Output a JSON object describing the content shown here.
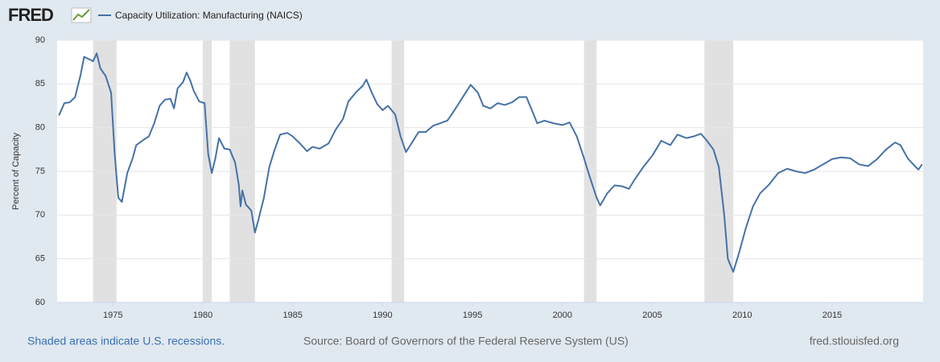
{
  "logo": "FRED",
  "footer": {
    "note": "Shaded areas indicate U.S. recessions.",
    "source": "Source: Board of Governors of the Federal Reserve System (US)",
    "site": "fred.stlouisfed.org"
  },
  "chart_data": {
    "type": "line",
    "ylabel": "Percent of Capacity",
    "xlim": [
      1971.9,
      2020.06
    ],
    "xticks": [
      1975,
      1980,
      1985,
      1990,
      1995,
      2000,
      2005,
      2010,
      2015
    ],
    "ylim": [
      60,
      90
    ],
    "yticks": [
      60,
      65,
      70,
      75,
      80,
      85,
      90
    ],
    "grid": true,
    "recessions": [
      [
        1973.9,
        1975.2
      ],
      [
        1980.0,
        1980.5
      ],
      [
        1981.5,
        1982.9
      ],
      [
        1990.5,
        1991.2
      ],
      [
        2001.2,
        2001.9
      ],
      [
        2007.9,
        2009.5
      ]
    ],
    "recession_color": "#e1e1e1",
    "x": [
      1972.0,
      1972.3,
      1972.6,
      1972.9,
      1973.2,
      1973.4,
      1973.7,
      1973.9,
      1974.1,
      1974.3,
      1974.6,
      1974.9,
      1975.1,
      1975.3,
      1975.5,
      1975.8,
      1976.1,
      1976.3,
      1976.7,
      1977.0,
      1977.3,
      1977.6,
      1977.9,
      1978.2,
      1978.4,
      1978.6,
      1978.9,
      1979.1,
      1979.3,
      1979.5,
      1979.8,
      1980.1,
      1980.3,
      1980.5,
      1980.7,
      1980.9,
      1981.2,
      1981.5,
      1981.8,
      1982.0,
      1982.1,
      1982.2,
      1982.4,
      1982.7,
      1982.9,
      1983.1,
      1983.4,
      1983.7,
      1984.0,
      1984.3,
      1984.7,
      1985.0,
      1985.4,
      1985.8,
      1986.1,
      1986.5,
      1987.0,
      1987.4,
      1987.8,
      1988.1,
      1988.5,
      1988.9,
      1989.1,
      1989.4,
      1989.7,
      1990.0,
      1990.3,
      1990.7,
      1991.0,
      1991.3,
      1991.7,
      1992.0,
      1992.4,
      1992.8,
      1993.2,
      1993.6,
      1994.0,
      1994.4,
      1994.9,
      1995.3,
      1995.6,
      1996.0,
      1996.4,
      1996.8,
      1997.2,
      1997.6,
      1998.0,
      1998.3,
      1998.6,
      1999.0,
      1999.5,
      2000.0,
      2000.4,
      2000.8,
      2001.2,
      2001.5,
      2001.9,
      2002.1,
      2002.5,
      2002.9,
      2003.3,
      2003.7,
      2004.0,
      2004.5,
      2005.0,
      2005.5,
      2006.0,
      2006.4,
      2006.9,
      2007.3,
      2007.7,
      2008.0,
      2008.4,
      2008.7,
      2009.0,
      2009.2,
      2009.5,
      2009.8,
      2010.2,
      2010.6,
      2011.0,
      2011.5,
      2012.0,
      2012.5,
      2013.0,
      2013.5,
      2014.0,
      2014.5,
      2015.0,
      2015.5,
      2016.0,
      2016.5,
      2017.0,
      2017.5,
      2018.0,
      2018.5,
      2018.8,
      2019.2,
      2019.6,
      2019.8,
      2020.0
    ],
    "series": [
      {
        "name": "Capacity Utilization: Manufacturing (NAICS)",
        "color": "#4572a7",
        "values": [
          81.4,
          82.8,
          82.9,
          83.5,
          86.0,
          88.1,
          87.8,
          87.6,
          88.5,
          86.8,
          85.9,
          84.0,
          77.0,
          72.0,
          71.5,
          74.8,
          76.5,
          78.0,
          78.6,
          79.0,
          80.5,
          82.5,
          83.2,
          83.3,
          82.2,
          84.5,
          85.2,
          86.3,
          85.4,
          84.2,
          83.0,
          82.8,
          77.0,
          74.8,
          76.5,
          78.8,
          77.6,
          77.5,
          76.0,
          73.5,
          71.0,
          72.8,
          71.2,
          70.5,
          68.0,
          69.5,
          72.0,
          75.5,
          77.5,
          79.2,
          79.4,
          79.0,
          78.2,
          77.3,
          77.8,
          77.6,
          78.2,
          79.8,
          81.0,
          83.0,
          84.0,
          84.8,
          85.5,
          84.0,
          82.7,
          82.0,
          82.5,
          81.5,
          79.0,
          77.2,
          78.5,
          79.5,
          79.5,
          80.2,
          80.5,
          80.8,
          82.0,
          83.3,
          84.9,
          84.0,
          82.5,
          82.2,
          82.8,
          82.6,
          82.9,
          83.5,
          83.5,
          82.0,
          80.5,
          80.8,
          80.5,
          80.3,
          80.6,
          79.0,
          76.5,
          74.5,
          72.0,
          71.1,
          72.5,
          73.4,
          73.3,
          73.0,
          74.0,
          75.5,
          76.8,
          78.5,
          78.0,
          79.2,
          78.8,
          79.0,
          79.3,
          78.6,
          77.5,
          75.5,
          70.0,
          65.0,
          63.5,
          65.5,
          68.5,
          71.0,
          72.5,
          73.5,
          74.8,
          75.3,
          75.0,
          74.8,
          75.2,
          75.8,
          76.4,
          76.6,
          76.5,
          75.8,
          75.6,
          76.4,
          77.5,
          78.3,
          78.0,
          76.5,
          75.6,
          75.2,
          75.8
        ]
      }
    ]
  }
}
